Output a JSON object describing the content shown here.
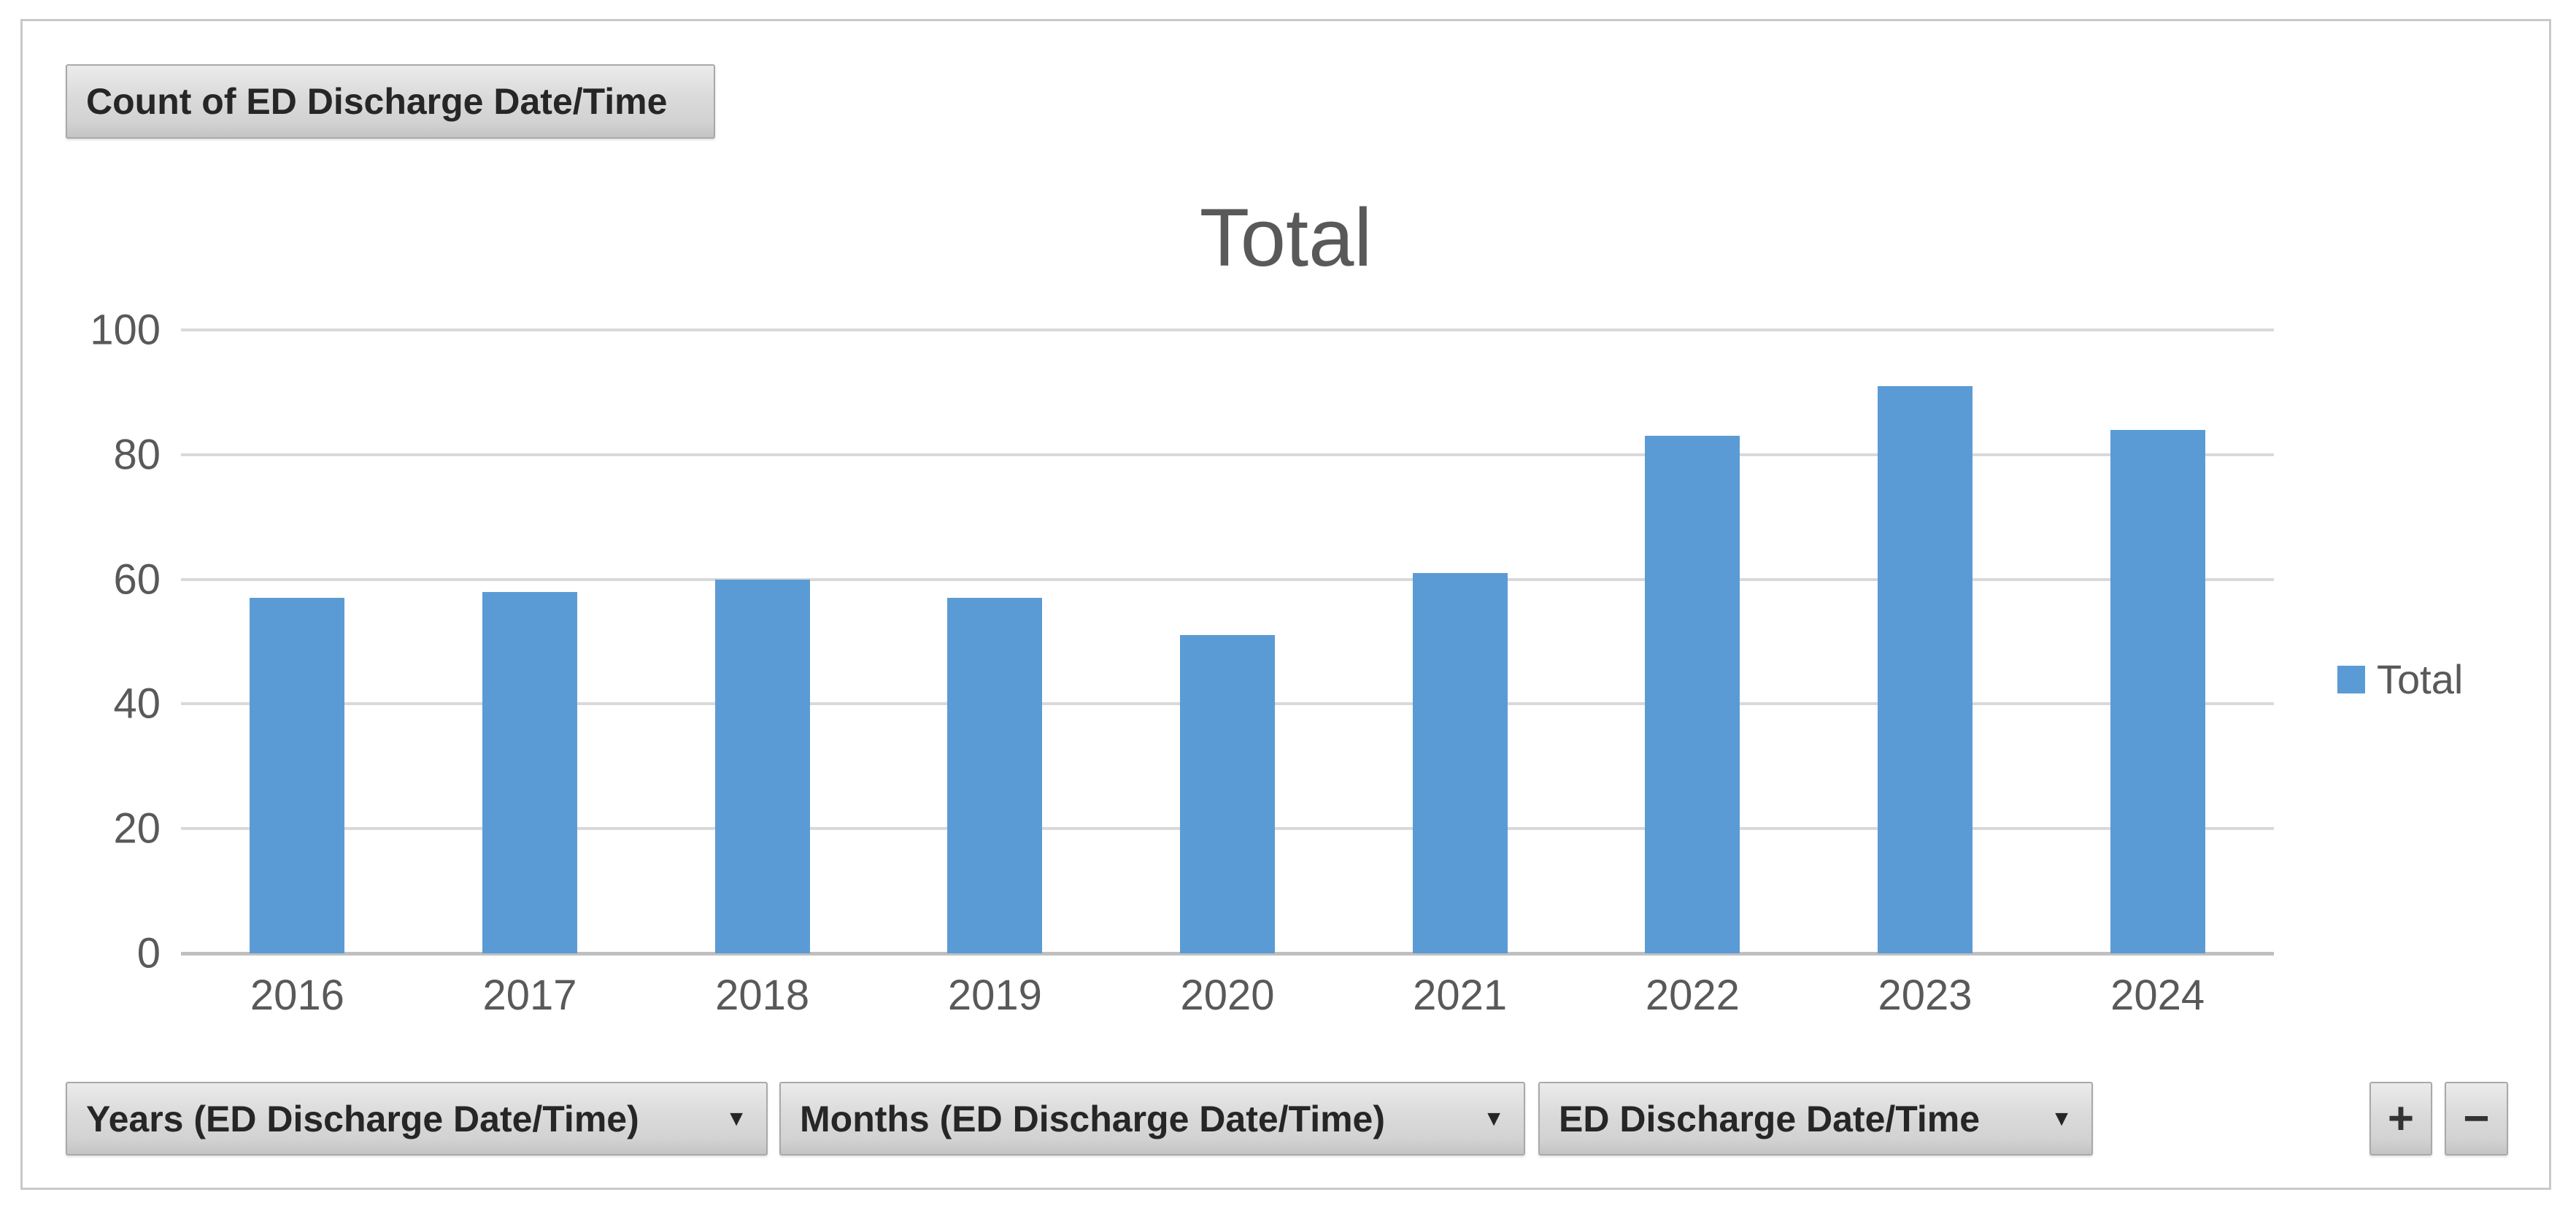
{
  "pivot": {
    "value_field_button": "Count of ED Discharge Date/Time",
    "axis_field_buttons": [
      "Years (ED Discharge Date/Time)",
      "Months (ED Discharge Date/Time)",
      "ED Discharge Date/Time"
    ],
    "dropdown_arrow": "▼",
    "expand_button": "+",
    "collapse_button": "−"
  },
  "chart_data": {
    "type": "bar",
    "title": "Total",
    "categories": [
      "2016",
      "2017",
      "2018",
      "2019",
      "2020",
      "2021",
      "2022",
      "2023",
      "2024"
    ],
    "series": [
      {
        "name": "Total",
        "values": [
          57,
          58,
          60,
          57,
          51,
          61,
          83,
          91,
          84
        ]
      }
    ],
    "ylim": [
      0,
      100
    ],
    "yticks": [
      0,
      20,
      40,
      60,
      80,
      100
    ],
    "xlabel": "",
    "ylabel": "",
    "legend_entries": [
      "Total"
    ],
    "legend_position": "right",
    "grid": true
  },
  "colors": {
    "bar": "#5B9BD5",
    "title_text": "#595959",
    "axis_text": "#595959",
    "gridline": "#D9D9D9",
    "axis_line": "#BFBFBF",
    "button_text": "#262626",
    "button_border": "#A9A9A9",
    "frame_border": "#C9C9C9"
  }
}
